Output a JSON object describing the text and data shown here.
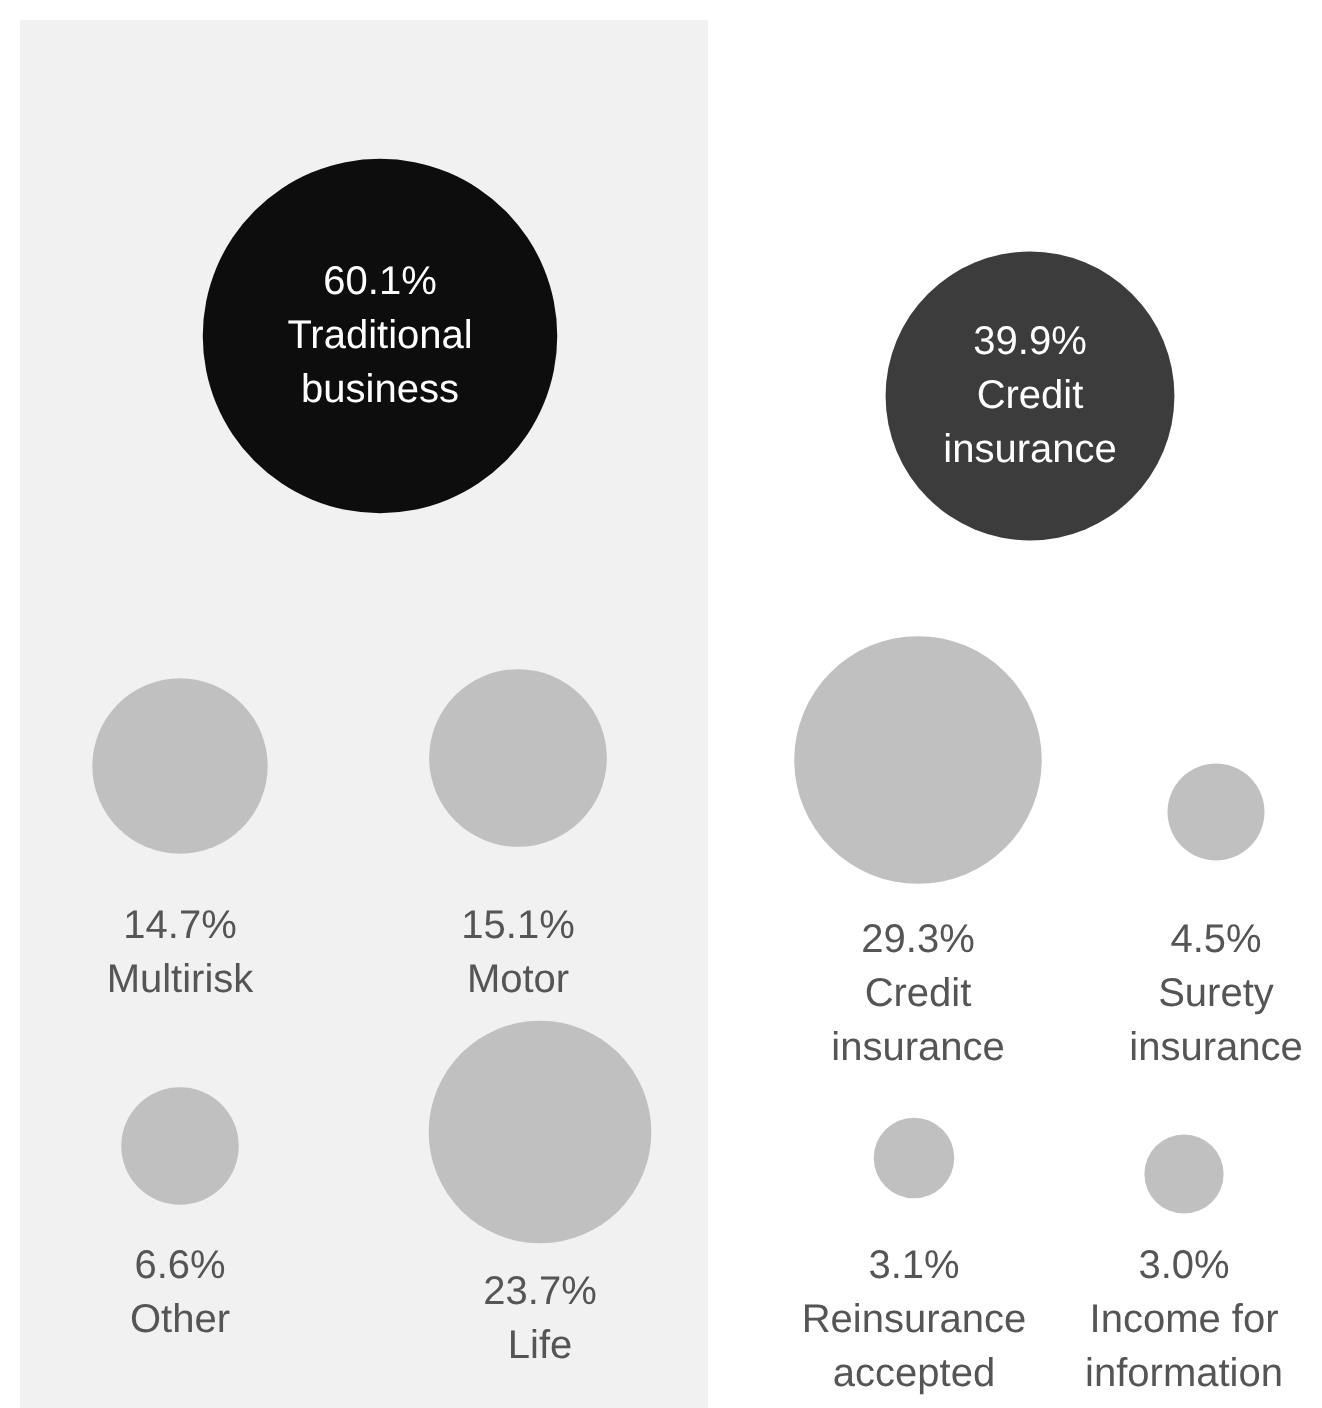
{
  "chart_data": {
    "type": "other",
    "categories": [
      "Traditional business",
      "Credit insurance",
      "Multirisk",
      "Motor",
      "Credit insurance",
      "Surety insurance",
      "Other",
      "Life",
      "Reinsurance accepted",
      "Income for information"
    ],
    "values": [
      60.1,
      39.9,
      14.7,
      15.1,
      29.3,
      4.5,
      6.6,
      23.7,
      3.1,
      3.0
    ],
    "value_labels": [
      "60.1%",
      "39.9%",
      "14.7%",
      "15.1%",
      "29.3%",
      "4.5%",
      "6.6%",
      "23.7%",
      "3.1%",
      "3.0%"
    ],
    "colors": [
      "#0d0d0d",
      "#3c3c3c",
      "#c0c0c0",
      "#c0c0c0",
      "#c0c0c0",
      "#c0c0c0",
      "#c0c0c0",
      "#c0c0c0",
      "#c0c0c0",
      "#c0c0c0"
    ]
  }
}
